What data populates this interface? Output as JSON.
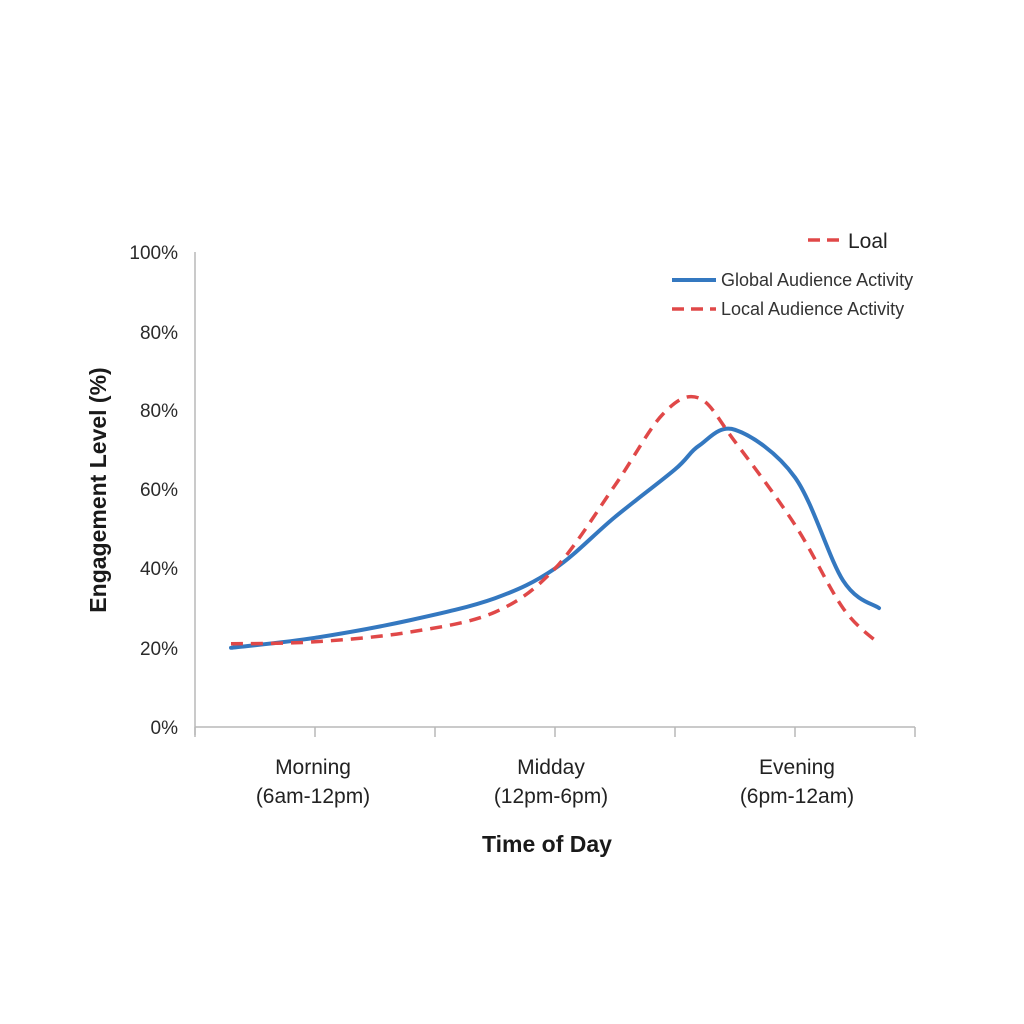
{
  "chart_data": {
    "type": "line",
    "title": "",
    "xlabel": "Time of Day",
    "ylabel": "Engagement Level (%)",
    "y_tick_labels": [
      "0%",
      "20%",
      "40%",
      "60%",
      "80%",
      "80%",
      "100%"
    ],
    "categories": [
      {
        "line1": "Morning",
        "line2": "(6am-12pm)"
      },
      {
        "line1": "Midday",
        "line2": "(12pm-6pm)"
      },
      {
        "line1": "Evening",
        "line2": "(6pm-12am)"
      }
    ],
    "x_range": [
      0,
      6
    ],
    "series": [
      {
        "name": "Global Audience Activity",
        "color": "#3478c0",
        "dash": "solid",
        "x": [
          0.3,
          1.0,
          1.8,
          2.5,
          3.0,
          3.5,
          4.0,
          4.2,
          4.5,
          5.0,
          5.4,
          5.7
        ],
        "y": [
          20,
          22.5,
          27,
          32.5,
          40,
          53,
          65,
          71,
          75,
          63,
          37,
          30
        ]
      },
      {
        "name": "Local Audience Activity",
        "color": "#e04848",
        "dash": "dashed",
        "x": [
          0.3,
          1.0,
          1.8,
          2.5,
          3.0,
          3.5,
          3.9,
          4.2,
          4.5,
          5.0,
          5.4,
          5.7
        ],
        "y": [
          21,
          21.5,
          24,
          29,
          40,
          61,
          79,
          83,
          72,
          51,
          30,
          21
        ]
      }
    ],
    "legend": {
      "placement": "top-right",
      "extra_entry": {
        "label": "Loal",
        "color": "#e04848",
        "dash": "dashed"
      }
    },
    "grid": false
  }
}
